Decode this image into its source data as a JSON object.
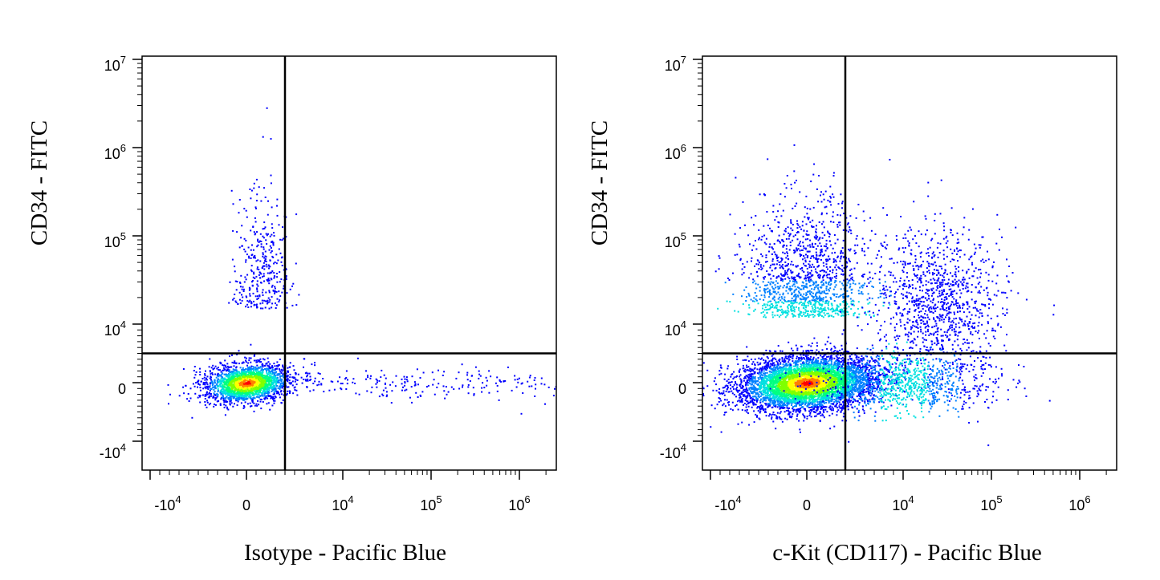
{
  "chart_data": [
    {
      "type": "scatter",
      "style": "density-pseudocolor",
      "title": "",
      "xlabel": "Isotype - Pacific Blue",
      "ylabel": "CD34 - FITC",
      "x_scale": "biexponential",
      "y_scale": "biexponential",
      "x_ticks": [
        "-10^4",
        "0",
        "10^4",
        "10^5",
        "10^6"
      ],
      "y_ticks": [
        "10^7",
        "10^6",
        "10^5",
        "10^4",
        "0",
        "-10^4"
      ],
      "quadrant_gate": {
        "x": 4000,
        "y": 5000
      },
      "populations": [
        {
          "name": "main",
          "center": [
            0,
            0
          ],
          "count": 2200
        },
        {
          "name": "CD34+ stream",
          "center": [
            1500,
            15000
          ],
          "count": 350
        },
        {
          "name": "x-tail",
          "center": [
            300000,
            0
          ],
          "count": 260
        }
      ],
      "grid": false
    },
    {
      "type": "scatter",
      "style": "density-pseudocolor",
      "title": "",
      "xlabel": "c-Kit (CD117) - Pacific Blue",
      "ylabel": "CD34 - FITC",
      "x_scale": "biexponential",
      "y_scale": "biexponential",
      "x_ticks": [
        "-10^4",
        "0",
        "10^4",
        "10^5",
        "10^6"
      ],
      "y_ticks": [
        "10^7",
        "10^6",
        "10^5",
        "10^4",
        "0",
        "-10^4"
      ],
      "quadrant_gate": {
        "x": 4000,
        "y": 5000
      },
      "populations": [
        {
          "name": "main",
          "center": [
            0,
            0
          ],
          "count": 5200
        },
        {
          "name": "CD34+ cKit-",
          "center": [
            0,
            15000
          ],
          "count": 1400
        },
        {
          "name": "CD34+ cKit+",
          "center": [
            25000,
            18000
          ],
          "count": 1100
        },
        {
          "name": "cKit+ CD34-",
          "center": [
            10000,
            0
          ],
          "count": 900
        }
      ],
      "grid": false
    }
  ]
}
